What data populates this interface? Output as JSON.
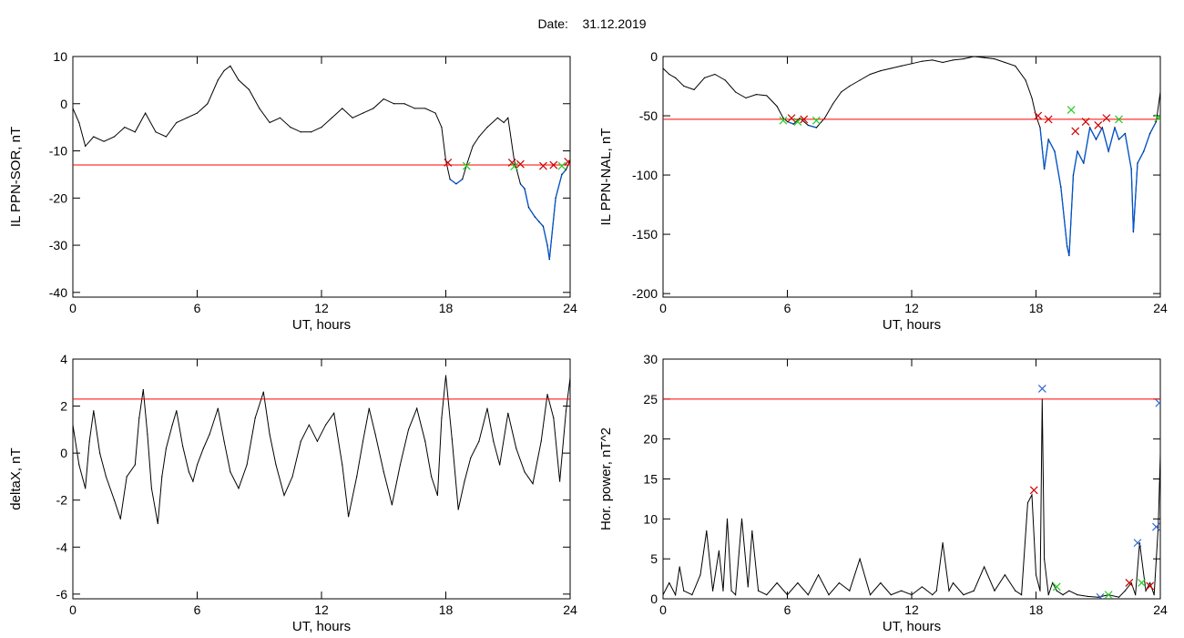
{
  "header": {
    "date_label": "Date:",
    "date_value": "31.12.2019"
  },
  "colors": {
    "series": "#000000",
    "threshold": "#ff0000",
    "below_threshold": "#0055cc",
    "marker_red": "#cc0000",
    "marker_green": "#22cc22",
    "marker_blue": "#3366cc"
  },
  "chart_data": [
    {
      "type": "line",
      "ylabel": "IL PPN-SOR, nT",
      "xlabel": "UT, hours",
      "xlim": [
        0,
        24
      ],
      "ylim": [
        -41,
        10
      ],
      "xticks": [
        0,
        6,
        12,
        18,
        24
      ],
      "yticks": [
        10,
        0,
        -10,
        -20,
        -30,
        -40
      ],
      "threshold": -13,
      "series": [
        {
          "x": [
            0,
            0.3,
            0.6,
            1,
            1.5,
            2,
            2.5,
            3,
            3.5,
            4,
            4.5,
            5,
            5.5,
            6,
            6.5,
            7,
            7.3,
            7.6,
            8,
            8.5,
            9,
            9.5,
            10,
            10.5,
            11,
            11.5,
            12,
            12.5,
            13,
            13.5,
            14,
            14.5,
            15,
            15.5,
            16,
            16.5,
            17,
            17.5,
            17.8,
            18,
            18.2,
            18.5,
            18.8,
            19,
            19.3,
            19.6,
            20,
            20.5,
            20.8,
            21,
            21.3,
            21.6,
            21.8,
            22,
            22.3,
            22.5,
            22.7,
            22.9,
            23,
            23.3,
            23.6,
            23.8,
            24
          ],
          "y": [
            -1,
            -4,
            -9,
            -7,
            -8,
            -7,
            -5,
            -6,
            -2,
            -6,
            -7,
            -4,
            -3,
            -2,
            0,
            5,
            7,
            8,
            5,
            3,
            -1,
            -4,
            -3,
            -5,
            -6,
            -6,
            -5,
            -3,
            -1,
            -3,
            -2,
            -1,
            1,
            0,
            0,
            -1,
            -1,
            -2,
            -5,
            -12,
            -16,
            -17,
            -16,
            -13,
            -9,
            -7,
            -5,
            -3,
            -4,
            -3,
            -12,
            -17,
            -18,
            -22,
            -24,
            -25,
            -26,
            -30,
            -33,
            -20,
            -15,
            -14,
            -12
          ]
        }
      ],
      "markers": [
        {
          "x": 18.1,
          "y": -12.5,
          "kind": "x",
          "color": "red"
        },
        {
          "x": 19.0,
          "y": -13.2,
          "kind": "x",
          "color": "green"
        },
        {
          "x": 21.2,
          "y": -12.5,
          "kind": "x",
          "color": "red"
        },
        {
          "x": 21.3,
          "y": -13.3,
          "kind": "x",
          "color": "green"
        },
        {
          "x": 21.6,
          "y": -12.8,
          "kind": "x",
          "color": "red"
        },
        {
          "x": 22.7,
          "y": -13.2,
          "kind": "x",
          "color": "red"
        },
        {
          "x": 23.2,
          "y": -13.0,
          "kind": "x",
          "color": "red"
        },
        {
          "x": 23.6,
          "y": -13.2,
          "kind": "x",
          "color": "green"
        },
        {
          "x": 23.9,
          "y": -12.3,
          "kind": "x",
          "color": "red"
        }
      ]
    },
    {
      "type": "line",
      "ylabel": "IL PPN-NAL, nT",
      "xlabel": "UT, hours",
      "xlim": [
        0,
        24
      ],
      "ylim": [
        -203,
        0
      ],
      "xticks": [
        0,
        6,
        12,
        18,
        24
      ],
      "yticks": [
        0,
        -50,
        -100,
        -150,
        -200
      ],
      "threshold": -53,
      "series": [
        {
          "x": [
            0,
            0.3,
            0.6,
            1,
            1.5,
            2,
            2.5,
            3,
            3.5,
            4,
            4.5,
            5,
            5.5,
            5.8,
            6,
            6.3,
            6.6,
            7,
            7.4,
            7.8,
            8.2,
            8.6,
            9,
            9.5,
            10,
            10.5,
            11,
            11.5,
            12,
            12.5,
            13,
            13.5,
            14,
            14.5,
            15,
            15.5,
            16,
            16.5,
            17,
            17.5,
            17.8,
            18,
            18.2,
            18.4,
            18.6,
            18.9,
            19.2,
            19.5,
            19.6,
            19.8,
            20,
            20.3,
            20.6,
            20.9,
            21.2,
            21.5,
            21.8,
            22,
            22.3,
            22.6,
            22.7,
            22.9,
            23.2,
            23.5,
            23.8,
            24
          ],
          "y": [
            -10,
            -15,
            -18,
            -25,
            -28,
            -18,
            -15,
            -20,
            -30,
            -35,
            -32,
            -33,
            -42,
            -52,
            -55,
            -57,
            -52,
            -58,
            -60,
            -52,
            -40,
            -30,
            -25,
            -20,
            -15,
            -12,
            -10,
            -8,
            -6,
            -4,
            -3,
            -5,
            -3,
            -2,
            0,
            -1,
            -2,
            -5,
            -8,
            -20,
            -35,
            -50,
            -60,
            -95,
            -70,
            -80,
            -110,
            -160,
            -168,
            -100,
            -80,
            -90,
            -60,
            -70,
            -60,
            -80,
            -60,
            -70,
            -65,
            -95,
            -148,
            -90,
            -80,
            -65,
            -55,
            -30
          ]
        }
      ],
      "markers": [
        {
          "x": 5.8,
          "y": -54,
          "kind": "x",
          "color": "green"
        },
        {
          "x": 6.2,
          "y": -52,
          "kind": "x",
          "color": "red"
        },
        {
          "x": 6.5,
          "y": -55,
          "kind": "x",
          "color": "green"
        },
        {
          "x": 6.8,
          "y": -53,
          "kind": "x",
          "color": "red"
        },
        {
          "x": 7.4,
          "y": -54,
          "kind": "x",
          "color": "green"
        },
        {
          "x": 18.1,
          "y": -50,
          "kind": "x",
          "color": "red"
        },
        {
          "x": 18.6,
          "y": -53,
          "kind": "x",
          "color": "red"
        },
        {
          "x": 19.7,
          "y": -45,
          "kind": "x",
          "color": "green"
        },
        {
          "x": 19.9,
          "y": -63,
          "kind": "x",
          "color": "red"
        },
        {
          "x": 20.4,
          "y": -55,
          "kind": "x",
          "color": "red"
        },
        {
          "x": 21.0,
          "y": -58,
          "kind": "x",
          "color": "red"
        },
        {
          "x": 21.4,
          "y": -52,
          "kind": "x",
          "color": "red"
        },
        {
          "x": 22.0,
          "y": -53,
          "kind": "x",
          "color": "green"
        },
        {
          "x": 23.9,
          "y": -52,
          "kind": "x",
          "color": "green"
        }
      ]
    },
    {
      "type": "line",
      "ylabel": "deltaX, nT",
      "xlabel": "UT, hours",
      "xlim": [
        0,
        24
      ],
      "ylim": [
        -6.2,
        4
      ],
      "xticks": [
        0,
        6,
        12,
        18,
        24
      ],
      "yticks": [
        4,
        2,
        0,
        -2,
        -4,
        -6
      ],
      "threshold": 2.3,
      "series": [
        {
          "x": [
            0,
            0.3,
            0.6,
            0.8,
            1.0,
            1.3,
            1.6,
            2,
            2.3,
            2.6,
            3,
            3.2,
            3.4,
            3.6,
            3.8,
            4.1,
            4.3,
            4.5,
            4.8,
            5,
            5.3,
            5.6,
            5.8,
            6,
            6.3,
            6.6,
            7,
            7.3,
            7.6,
            8,
            8.4,
            8.8,
            9.2,
            9.5,
            9.8,
            10.2,
            10.6,
            11,
            11.4,
            11.8,
            12.2,
            12.6,
            13,
            13.3,
            13.7,
            14,
            14.3,
            14.6,
            15,
            15.4,
            15.8,
            16.2,
            16.6,
            17,
            17.3,
            17.6,
            17.8,
            18,
            18.3,
            18.6,
            18.9,
            19.2,
            19.6,
            20,
            20.3,
            20.6,
            21,
            21.4,
            21.8,
            22.2,
            22.6,
            22.9,
            23.2,
            23.5,
            23.8,
            24
          ],
          "y": [
            1.2,
            -0.5,
            -1.5,
            0.5,
            1.8,
            0,
            -1,
            -2,
            -2.8,
            -1,
            -0.5,
            1.5,
            2.7,
            0.8,
            -1.5,
            -3,
            -1,
            0.2,
            1.2,
            1.8,
            0.3,
            -0.8,
            -1.2,
            -0.5,
            0.2,
            0.8,
            1.9,
            0.5,
            -0.8,
            -1.5,
            -0.5,
            1.5,
            2.6,
            0.8,
            -0.5,
            -1.8,
            -1,
            0.5,
            1.2,
            0.5,
            1.2,
            1.7,
            -0.5,
            -2.7,
            -1,
            0.5,
            1.9,
            0.8,
            -0.8,
            -2.2,
            -0.5,
            1,
            1.9,
            0.5,
            -1,
            -1.8,
            1.5,
            3.3,
            0.6,
            -2.4,
            -1.2,
            -0.2,
            0.5,
            1.9,
            0.5,
            -0.5,
            1.7,
            0.2,
            -0.8,
            -1.3,
            0.5,
            2.5,
            1.5,
            -1.2,
            1.8,
            3.2
          ]
        }
      ],
      "markers": []
    },
    {
      "type": "line",
      "ylabel": "Hor. power, nT^2",
      "xlabel": "UT, hours",
      "xlim": [
        0,
        24
      ],
      "ylim": [
        0,
        30
      ],
      "xticks": [
        0,
        6,
        12,
        18,
        24
      ],
      "yticks": [
        0,
        5,
        10,
        15,
        20,
        25,
        30
      ],
      "threshold": 25,
      "series": [
        {
          "x": [
            0,
            0.3,
            0.6,
            0.8,
            1,
            1.4,
            1.8,
            2.1,
            2.4,
            2.7,
            2.9,
            3.1,
            3.3,
            3.5,
            3.8,
            4.1,
            4.3,
            4.6,
            5,
            5.5,
            6,
            6.5,
            7,
            7.5,
            8,
            8.5,
            9,
            9.5,
            10,
            10.5,
            11,
            11.5,
            12,
            12.5,
            13,
            13.2,
            13.5,
            13.8,
            14,
            14.5,
            15,
            15.5,
            16,
            16.5,
            17,
            17.3,
            17.6,
            17.8,
            18,
            18.2,
            18.3,
            18.4,
            18.6,
            18.8,
            19,
            19.3,
            19.6,
            20,
            20.5,
            21,
            21.5,
            22,
            22.3,
            22.6,
            22.8,
            23,
            23.3,
            23.5,
            23.7,
            23.9,
            24
          ],
          "y": [
            0.5,
            2,
            0.5,
            4,
            1,
            0.5,
            3,
            8.5,
            1,
            6,
            1,
            10,
            1,
            0.5,
            10,
            1.5,
            8.5,
            1,
            0.5,
            2,
            0.5,
            2,
            0.5,
            3,
            0.5,
            2,
            1,
            5,
            0.5,
            2,
            0.5,
            1,
            0.5,
            1.5,
            0.5,
            1,
            7,
            1,
            2,
            0.5,
            1,
            4,
            1,
            3,
            1,
            0.5,
            12,
            13,
            3,
            1,
            25,
            5,
            0.5,
            2,
            1,
            0.5,
            1,
            0.5,
            0.3,
            0.2,
            0.5,
            0.2,
            1,
            2,
            0.5,
            7,
            1,
            2,
            0.5,
            9,
            18
          ]
        }
      ],
      "markers": [
        {
          "x": 18.3,
          "y": 26.3,
          "kind": "x",
          "color": "blue"
        },
        {
          "x": 17.9,
          "y": 13.6,
          "kind": "x",
          "color": "red"
        },
        {
          "x": 19.0,
          "y": 1.5,
          "kind": "x",
          "color": "green"
        },
        {
          "x": 21.1,
          "y": 0.2,
          "kind": "x",
          "color": "blue"
        },
        {
          "x": 21.5,
          "y": 0.5,
          "kind": "x",
          "color": "green"
        },
        {
          "x": 22.5,
          "y": 2.0,
          "kind": "x",
          "color": "red"
        },
        {
          "x": 22.9,
          "y": 7.0,
          "kind": "x",
          "color": "blue"
        },
        {
          "x": 23.1,
          "y": 2.0,
          "kind": "x",
          "color": "green"
        },
        {
          "x": 23.5,
          "y": 1.6,
          "kind": "x",
          "color": "red"
        },
        {
          "x": 23.8,
          "y": 9.0,
          "kind": "x",
          "color": "blue"
        },
        {
          "x": 23.95,
          "y": 24.5,
          "kind": "x",
          "color": "blue"
        }
      ]
    }
  ]
}
